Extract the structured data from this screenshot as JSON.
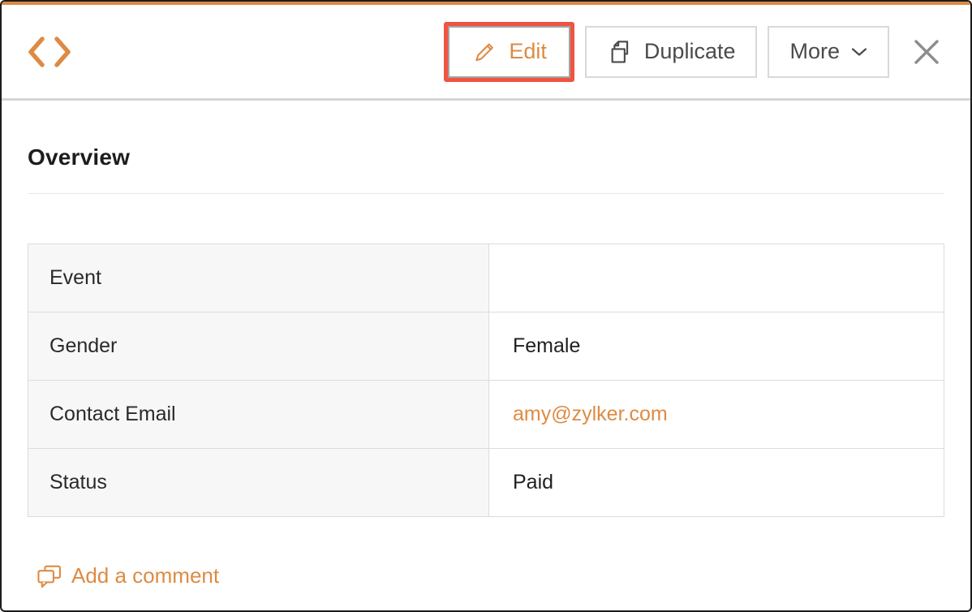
{
  "colors": {
    "accent_orange": "#dd8b43",
    "annotation_red": "#f05442",
    "button_text_gray": "#4a4a4a",
    "close_icon_gray": "#8c8c8c"
  },
  "toolbar": {
    "code_icon": "code-angle-brackets",
    "edit_label": "Edit",
    "edit_icon": "pencil-icon",
    "duplicate_label": "Duplicate",
    "duplicate_icon": "duplicate-pages-icon",
    "more_label": "More",
    "more_icon": "chevron-down-icon",
    "close_icon": "close-x-icon",
    "edit_highlight": "red annotation box around Edit button"
  },
  "section": {
    "title": "Overview"
  },
  "record": {
    "fields": [
      {
        "label": "Event",
        "value": "",
        "type": "text"
      },
      {
        "label": "Gender",
        "value": "Female",
        "type": "text"
      },
      {
        "label": "Contact Email",
        "value": "amy@zylker.com",
        "type": "link"
      },
      {
        "label": "Status",
        "value": "Paid",
        "type": "text"
      }
    ]
  },
  "footer": {
    "add_comment_label": "Add a comment",
    "comment_icon": "speech-bubbles-icon"
  }
}
